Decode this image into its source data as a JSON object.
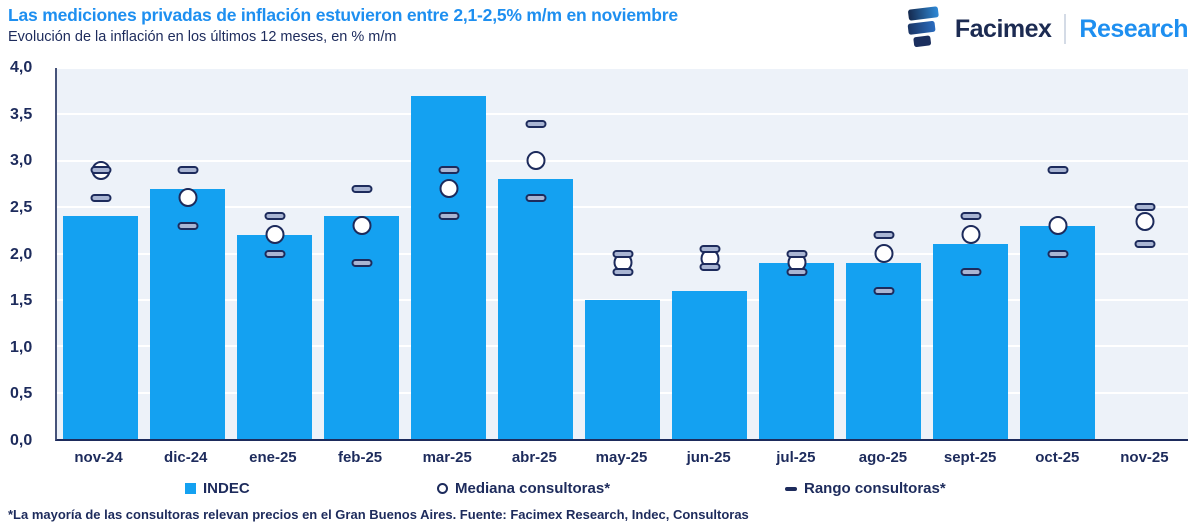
{
  "header": {
    "title": "Las mediciones privadas de inflación estuvieron entre 2,1-2,5% m/m en noviembre",
    "subtitle": "Evolución de la inflación en los últimos 12 meses, en % m/m",
    "logo": {
      "brand": "Facimex",
      "sub": "Research"
    }
  },
  "chart_data": {
    "type": "bar",
    "title": "Las mediciones privadas de inflación estuvieron entre 2,1-2,5% m/m en noviembre",
    "subtitle": "Evolución de la inflación en los últimos 12 meses, en % m/m",
    "categories": [
      "nov-24",
      "dic-24",
      "ene-25",
      "feb-25",
      "mar-25",
      "abr-25",
      "may-25",
      "jun-25",
      "jul-25",
      "ago-25",
      "sept-25",
      "oct-25",
      "nov-25"
    ],
    "series": [
      {
        "name": "INDEC",
        "marker": "bar",
        "values": [
          2.4,
          2.7,
          2.2,
          2.4,
          3.7,
          2.8,
          1.5,
          1.6,
          1.9,
          1.9,
          2.1,
          2.3,
          null
        ]
      },
      {
        "name": "Mediana consultoras*",
        "marker": "circle",
        "values": [
          2.9,
          2.6,
          2.2,
          2.3,
          2.7,
          3.0,
          1.9,
          1.95,
          1.9,
          2.0,
          2.2,
          2.3,
          2.35
        ]
      },
      {
        "name": "Rango consultoras* (máximo)",
        "marker": "dash",
        "values": [
          2.9,
          2.9,
          2.4,
          2.7,
          2.9,
          3.4,
          2.0,
          2.05,
          2.0,
          2.2,
          2.4,
          2.9,
          2.5
        ]
      },
      {
        "name": "Rango consultoras* (mínimo)",
        "marker": "dash",
        "values": [
          2.6,
          2.3,
          2.0,
          1.9,
          2.4,
          2.6,
          1.8,
          1.85,
          1.8,
          1.6,
          1.8,
          2.0,
          2.1
        ]
      }
    ],
    "ylim": [
      0,
      4
    ],
    "ytick_step": 0.5,
    "yticks": [
      0,
      0.5,
      1,
      1.5,
      2,
      2.5,
      3,
      3.5,
      4
    ],
    "yticklabels": [
      "0,0",
      "0,5",
      "1,0",
      "1,5",
      "2,0",
      "2,5",
      "3,0",
      "3,5",
      "4,0"
    ],
    "xlabel": "",
    "ylabel": "% m/m",
    "grid": "horizontal",
    "legend_position": "bottom"
  },
  "legend": {
    "items": [
      {
        "icon": "square-icon",
        "label": "INDEC"
      },
      {
        "icon": "circle-icon",
        "label": "Mediana consultoras*"
      },
      {
        "icon": "dash-icon",
        "label": "Rango consultoras*"
      }
    ]
  },
  "footer": "*La mayoría de las consultoras relevan precios en el Gran Buenos Aires. Fuente: Facimex Research, Indec, Consultoras",
  "colors": {
    "bar": "#14a1f1",
    "title_blue": "#1e8ff0",
    "navy": "#1d2b5c",
    "plot_background": "#edf2f9",
    "gridline": "#ffffff",
    "dash_fill": "#a9b5d3"
  }
}
